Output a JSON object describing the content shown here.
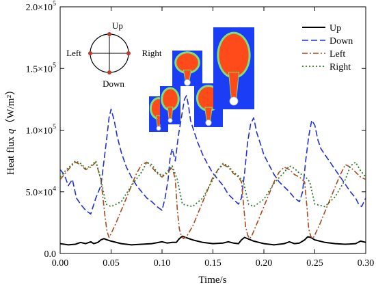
{
  "chart_data": {
    "type": "line",
    "xlabel": "Time/s",
    "ylabel_prefix": "Heat flux ",
    "ylabel_symbol": "q",
    "ylabel_unit": "（W/m²）",
    "xlim": [
      0.0,
      0.3
    ],
    "ylim": [
      0.0,
      200000
    ],
    "x_ticks": [
      0.0,
      0.05,
      0.1,
      0.15,
      0.2,
      0.25,
      0.3
    ],
    "x_tick_labels": [
      "0.00",
      "0.05",
      "0.10",
      "0.15",
      "0.20",
      "0.25",
      "0.30"
    ],
    "y_ticks": [
      0,
      50000,
      100000,
      150000,
      200000
    ],
    "y_tick_mantissa": [
      "0.0",
      "5.0×10",
      "1.0×10",
      "1.5×10",
      "2.0×10"
    ],
    "y_tick_exponent": [
      "",
      "4",
      "5",
      "5",
      "5"
    ],
    "legend_position": "top-right",
    "series": [
      {
        "name": "Up",
        "color": "#000000",
        "dash": "solid",
        "x": [
          0.0,
          0.008,
          0.015,
          0.02,
          0.025,
          0.03,
          0.033,
          0.037,
          0.04,
          0.043,
          0.046,
          0.05,
          0.06,
          0.07,
          0.08,
          0.09,
          0.1,
          0.105,
          0.11,
          0.114,
          0.117,
          0.12,
          0.123,
          0.13,
          0.14,
          0.15,
          0.16,
          0.165,
          0.17,
          0.175,
          0.178,
          0.181,
          0.184,
          0.19,
          0.2,
          0.21,
          0.22,
          0.225,
          0.23,
          0.235,
          0.24,
          0.243,
          0.246,
          0.25,
          0.26,
          0.27,
          0.28,
          0.29,
          0.295,
          0.3
        ],
        "y": [
          8000,
          7000,
          7500,
          9000,
          8000,
          9500,
          8000,
          9000,
          11000,
          12000,
          11000,
          10000,
          8000,
          7000,
          7500,
          8000,
          9500,
          8500,
          9000,
          9000,
          12000,
          14000,
          13000,
          11000,
          9000,
          8000,
          8500,
          9500,
          8500,
          8000,
          11000,
          13000,
          12000,
          10000,
          8000,
          7000,
          8000,
          9500,
          8000,
          8500,
          11000,
          13500,
          13000,
          11000,
          9000,
          8000,
          7500,
          8000,
          10000,
          9000
        ]
      },
      {
        "name": "Down",
        "color": "#1f2fd6",
        "dash": "long",
        "x": [
          0.0,
          0.004,
          0.008,
          0.012,
          0.016,
          0.02,
          0.025,
          0.03,
          0.035,
          0.04,
          0.043,
          0.046,
          0.048,
          0.05,
          0.053,
          0.056,
          0.06,
          0.065,
          0.07,
          0.075,
          0.08,
          0.085,
          0.09,
          0.095,
          0.1,
          0.103,
          0.106,
          0.108,
          0.11,
          0.113,
          0.116,
          0.119,
          0.122,
          0.124,
          0.126,
          0.128,
          0.131,
          0.135,
          0.14,
          0.145,
          0.15,
          0.155,
          0.16,
          0.165,
          0.17,
          0.175,
          0.178,
          0.181,
          0.184,
          0.187,
          0.19,
          0.193,
          0.197,
          0.2,
          0.205,
          0.21,
          0.215,
          0.22,
          0.225,
          0.23,
          0.235,
          0.238,
          0.241,
          0.244,
          0.247,
          0.25,
          0.253,
          0.256,
          0.26,
          0.265,
          0.27,
          0.275,
          0.28,
          0.285,
          0.29,
          0.293,
          0.296,
          0.3
        ],
        "y": [
          68000,
          64000,
          55000,
          60000,
          45000,
          40000,
          35000,
          32000,
          45000,
          55000,
          75000,
          95000,
          110000,
          117000,
          108000,
          95000,
          82000,
          70000,
          62000,
          55000,
          50000,
          45000,
          42000,
          38000,
          35000,
          45000,
          60000,
          78000,
          85000,
          75000,
          95000,
          110000,
          125000,
          128000,
          120000,
          108000,
          100000,
          90000,
          80000,
          72000,
          65000,
          60000,
          55000,
          48000,
          44000,
          40000,
          45000,
          65000,
          90000,
          105000,
          110000,
          98000,
          88000,
          80000,
          72000,
          64000,
          58000,
          54000,
          50000,
          45000,
          42000,
          50000,
          75000,
          95000,
          108000,
          104000,
          92000,
          85000,
          80000,
          74000,
          68000,
          62000,
          56000,
          50000,
          45000,
          40000,
          38000,
          45000
        ]
      },
      {
        "name": "Left",
        "color": "#a84a1e",
        "dash": "dashdot",
        "x": [
          0.0,
          0.005,
          0.01,
          0.015,
          0.02,
          0.025,
          0.03,
          0.035,
          0.04,
          0.042,
          0.044,
          0.046,
          0.048,
          0.05,
          0.055,
          0.06,
          0.065,
          0.07,
          0.075,
          0.08,
          0.085,
          0.09,
          0.095,
          0.1,
          0.105,
          0.11,
          0.113,
          0.115,
          0.117,
          0.119,
          0.121,
          0.123,
          0.125,
          0.13,
          0.135,
          0.14,
          0.145,
          0.15,
          0.155,
          0.16,
          0.165,
          0.17,
          0.175,
          0.178,
          0.18,
          0.182,
          0.184,
          0.186,
          0.188,
          0.19,
          0.195,
          0.2,
          0.205,
          0.21,
          0.215,
          0.22,
          0.225,
          0.23,
          0.235,
          0.24,
          0.242,
          0.244,
          0.246,
          0.248,
          0.25,
          0.255,
          0.26,
          0.265,
          0.27,
          0.275,
          0.28,
          0.285,
          0.29,
          0.295,
          0.3
        ],
        "y": [
          60000,
          65000,
          70000,
          74000,
          72000,
          68000,
          70000,
          74000,
          60000,
          45000,
          30000,
          18000,
          13000,
          16000,
          25000,
          35000,
          45000,
          55000,
          65000,
          72000,
          74000,
          70000,
          65000,
          62000,
          65000,
          70000,
          60000,
          35000,
          20000,
          14000,
          12000,
          13000,
          15000,
          22000,
          32000,
          42000,
          52000,
          62000,
          68000,
          72000,
          70000,
          65000,
          62000,
          58000,
          40000,
          22000,
          15000,
          12000,
          14000,
          18000,
          28000,
          38000,
          48000,
          58000,
          66000,
          70000,
          68000,
          64000,
          62000,
          58000,
          40000,
          20000,
          14000,
          12000,
          15000,
          24000,
          34000,
          44000,
          54000,
          64000,
          72000,
          70000,
          66000,
          62000,
          60000
        ]
      },
      {
        "name": "Right",
        "color": "#2a7a2a",
        "dash": "dotted",
        "x": [
          0.0,
          0.005,
          0.01,
          0.015,
          0.02,
          0.025,
          0.03,
          0.035,
          0.04,
          0.045,
          0.05,
          0.06,
          0.07,
          0.08,
          0.085,
          0.09,
          0.095,
          0.1,
          0.105,
          0.11,
          0.115,
          0.12,
          0.13,
          0.14,
          0.15,
          0.155,
          0.16,
          0.165,
          0.17,
          0.175,
          0.18,
          0.185,
          0.19,
          0.2,
          0.21,
          0.22,
          0.225,
          0.23,
          0.235,
          0.24,
          0.245,
          0.25,
          0.26,
          0.27,
          0.28,
          0.285,
          0.29,
          0.295,
          0.3
        ],
        "y": [
          62000,
          67000,
          71000,
          75000,
          73000,
          69000,
          71000,
          75000,
          60000,
          40000,
          38000,
          42000,
          55000,
          66000,
          74000,
          72000,
          66000,
          63000,
          66000,
          71000,
          60000,
          40000,
          38000,
          45000,
          60000,
          68000,
          73000,
          71000,
          66000,
          63000,
          58000,
          40000,
          38000,
          44000,
          57000,
          66000,
          71000,
          69000,
          65000,
          63000,
          58000,
          40000,
          38000,
          46000,
          60000,
          71000,
          74000,
          67000,
          62000
        ]
      }
    ],
    "inset": {
      "compass_labels": {
        "up": "Up",
        "down": "Down",
        "left": "Left",
        "right": "Right"
      },
      "bubble_colors": {
        "background": "#1a3df5",
        "bubble": "#ff4a1a",
        "halo": "#7fe07a",
        "tube": "#ff4a1a"
      }
    }
  }
}
